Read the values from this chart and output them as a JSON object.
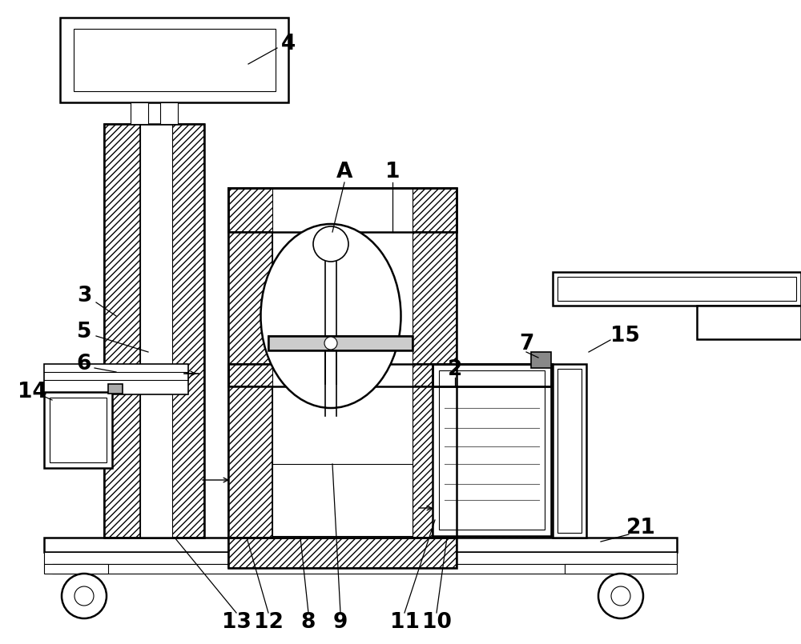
{
  "bg_color": "#ffffff",
  "line_color": "#000000",
  "fig_width": 10.0,
  "fig_height": 8.05,
  "dpi": 100
}
